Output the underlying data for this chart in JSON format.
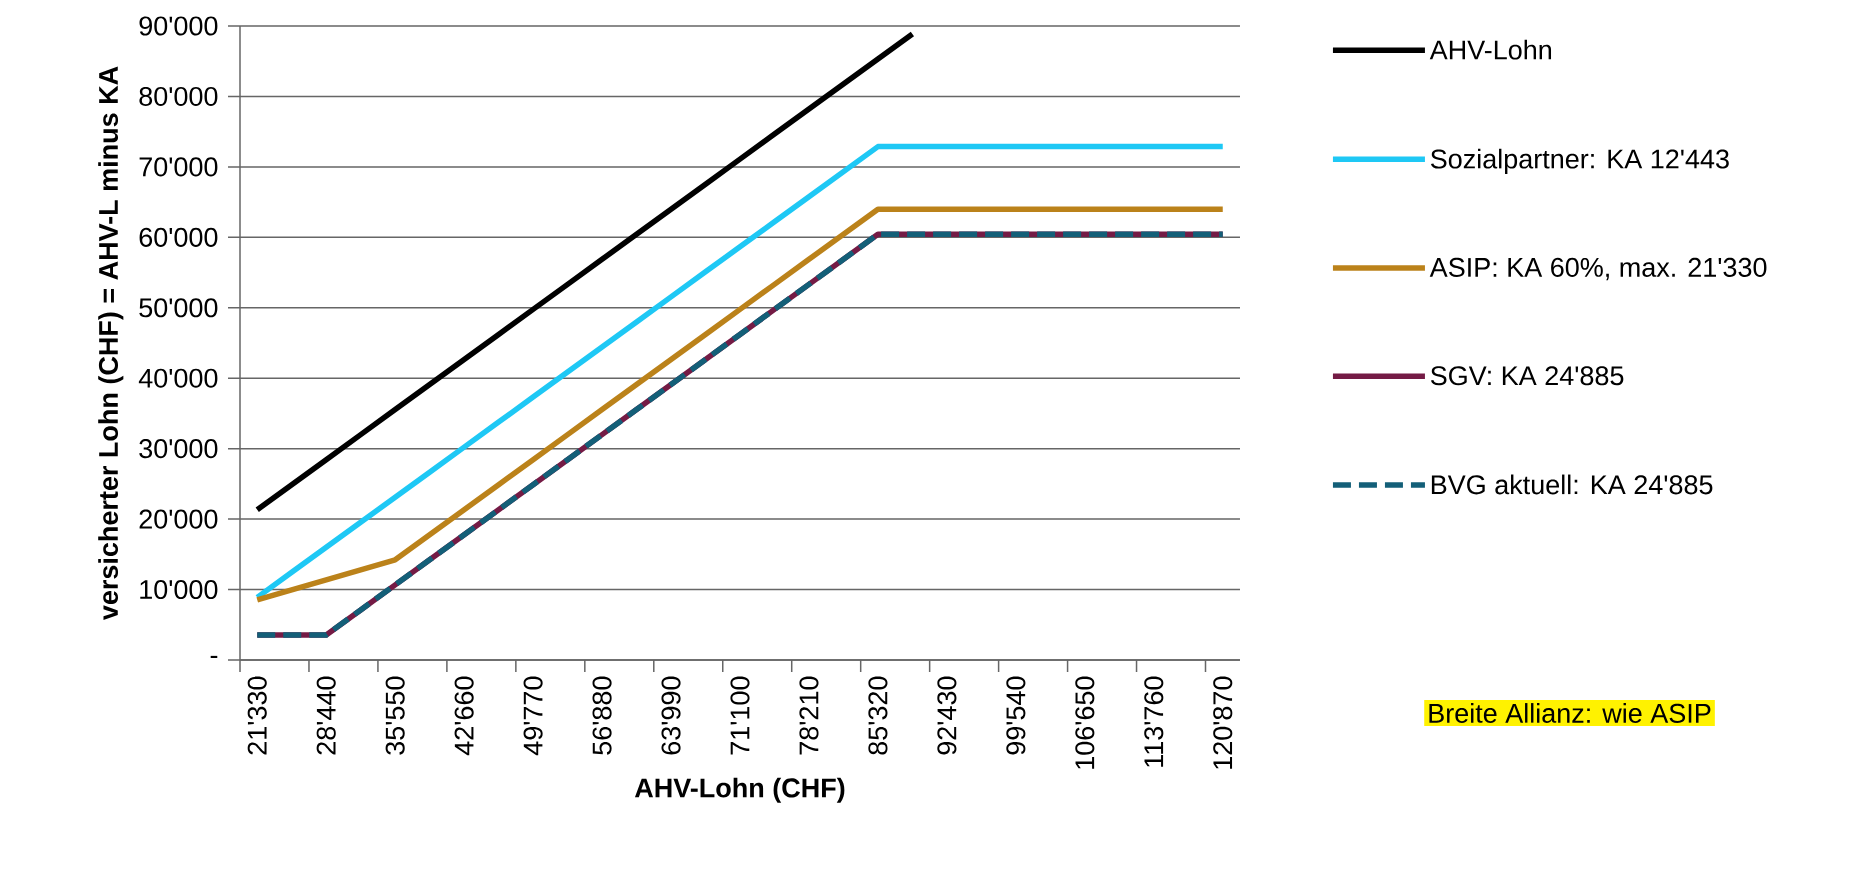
{
  "chart_data": {
    "type": "line",
    "xlabel": "AHV-Lohn (CHF)",
    "ylabel": "versicherter Lohn (CHF) = AHV-L minus KA",
    "categories": [
      "21'330",
      null,
      "28'440",
      null,
      "35'550",
      null,
      "42'660",
      null,
      "49'770",
      null,
      "56'880",
      null,
      "63'990",
      null,
      "71'100",
      null,
      "78'210",
      null,
      "85'320",
      null,
      "92'430",
      null,
      "99'540",
      null,
      "106'650",
      null,
      "113'760",
      null,
      "120'870"
    ],
    "series": [
      {
        "name": "AHV-Lohn",
        "color": "#000000",
        "values": [
          21330,
          24885,
          28440,
          31995,
          35550,
          39105,
          42660,
          46215,
          49770,
          53325,
          56880,
          60435,
          63990,
          67545,
          71100,
          74655,
          78210,
          81765,
          85320,
          88875,
          null,
          null,
          null,
          null,
          null,
          null,
          null,
          null,
          null
        ]
      },
      {
        "name": "Sozialpartner: KA 12'443",
        "color": "#1ec8f5",
        "values": [
          8887,
          12442,
          15997,
          19552,
          23107,
          26662,
          30217,
          33772,
          37327,
          40882,
          44437,
          47992,
          51547,
          55102,
          58657,
          62212,
          65767,
          69322,
          72877,
          72877,
          72877,
          72877,
          72877,
          72877,
          72877,
          72877,
          72877,
          72877,
          72877
        ]
      },
      {
        "name": "ASIP: KA 60%, max. 21'330",
        "color": "#bb821a",
        "values": [
          8532,
          9954,
          11376,
          12798,
          14220,
          17775,
          21330,
          24885,
          28440,
          31995,
          35550,
          39105,
          42660,
          46215,
          49770,
          53325,
          56880,
          60435,
          63990,
          63990,
          63990,
          63990,
          63990,
          63990,
          63990,
          63990,
          63990,
          63990,
          63990
        ]
      },
      {
        "name": "SGV: KA 24'885",
        "color": "#741b45",
        "values": [
          3555,
          3555,
          3555,
          7110,
          10665,
          14220,
          17775,
          21330,
          24885,
          28440,
          31995,
          35550,
          39105,
          42660,
          46215,
          49770,
          53325,
          56880,
          60435,
          60435,
          60435,
          60435,
          60435,
          60435,
          60435,
          60435,
          60435,
          60435,
          60435
        ]
      },
      {
        "name": "BVG aktuell: KA 24'885",
        "color": "#135f78",
        "line_style": "dashed",
        "values": [
          3555,
          3555,
          3555,
          7110,
          10665,
          14220,
          17775,
          21330,
          24885,
          28440,
          31995,
          35550,
          39105,
          42660,
          46215,
          49770,
          53325,
          56880,
          60435,
          60435,
          60435,
          60435,
          60435,
          60435,
          60435,
          60435,
          60435,
          60435,
          60435
        ]
      }
    ],
    "ylim": [
      0,
      90000
    ],
    "yticks": [
      {
        "value": 0,
        "label": "-"
      },
      {
        "value": 10000,
        "label": "10'000"
      },
      {
        "value": 20000,
        "label": "20'000"
      },
      {
        "value": 30000,
        "label": "30'000"
      },
      {
        "value": 40000,
        "label": "40'000"
      },
      {
        "value": 50000,
        "label": "50'000"
      },
      {
        "value": 60000,
        "label": "60'000"
      },
      {
        "value": 70000,
        "label": "70'000"
      },
      {
        "value": 80000,
        "label": "80'000"
      },
      {
        "value": 90000,
        "label": "90'000"
      }
    ],
    "grid": "y",
    "legend": "right",
    "marker": "none",
    "annotations": [
      "Breite Allianz: wie ASIP"
    ]
  }
}
